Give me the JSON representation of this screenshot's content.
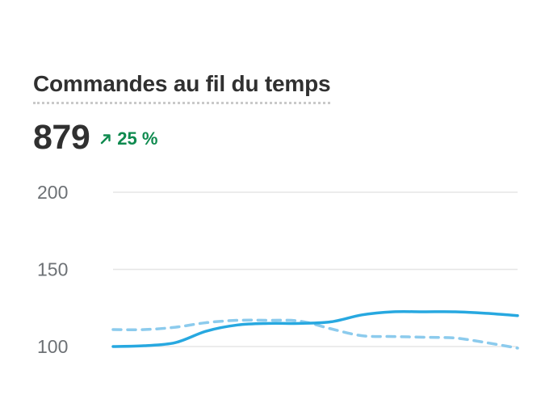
{
  "card": {
    "title": "Commandes au fil du temps",
    "value": "879",
    "trend_icon": "arrow-up-right-icon",
    "trend_text": "25 %",
    "trend_color": "#0f8a4f"
  },
  "chart_data": {
    "type": "line",
    "title": "Commandes au fil du temps",
    "xlabel": "",
    "ylabel": "",
    "ylim": [
      100,
      200
    ],
    "yticks": [
      100,
      150,
      200
    ],
    "ytick_labels": [
      "100",
      "150",
      "200"
    ],
    "grid": true,
    "x": [
      0,
      1,
      2,
      3,
      4,
      5,
      6,
      7,
      8,
      9,
      10,
      11,
      12,
      13
    ],
    "series": [
      {
        "values": [
          100,
          100.5,
          102.5,
          110,
          114,
          115,
          115,
          116,
          120.5,
          122.5,
          122.5,
          122.5,
          121.5,
          120
        ],
        "color": "#27a8e0",
        "style": "solid"
      },
      {
        "values": [
          111,
          111,
          112.5,
          115.5,
          117,
          117,
          116.5,
          111.5,
          107,
          106.5,
          106,
          105.5,
          102.5,
          99
        ],
        "color": "#8ccbed",
        "style": "dashed"
      }
    ]
  }
}
